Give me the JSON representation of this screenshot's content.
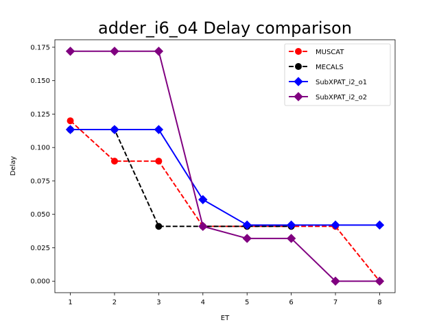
{
  "chart_data": {
    "type": "line",
    "title": "adder_i6_o4 Delay comparison",
    "xlabel": "ET",
    "ylabel": "Delay",
    "x": [
      1,
      2,
      3,
      4,
      5,
      6,
      7,
      8
    ],
    "xlim": [
      0.65,
      8.35
    ],
    "ylim": [
      -0.0086,
      0.1806
    ],
    "xticks": [
      1,
      2,
      3,
      4,
      5,
      6,
      7,
      8
    ],
    "xtick_labels": [
      "1",
      "2",
      "3",
      "4",
      "5",
      "6",
      "7",
      "8"
    ],
    "yticks": [
      0.0,
      0.025,
      0.05,
      0.075,
      0.1,
      0.125,
      0.15,
      0.175
    ],
    "ytick_labels": [
      "0.000",
      "0.025",
      "0.050",
      "0.075",
      "0.100",
      "0.125",
      "0.150",
      "0.175"
    ],
    "grid": false,
    "legend_position": "top-right",
    "series": [
      {
        "name": "MUSCAT",
        "color": "#ff0000",
        "dash": "dashed",
        "marker": "circle",
        "values": [
          0.12,
          0.0898,
          0.0898,
          0.041,
          0.041,
          0.041,
          0.041,
          0.0
        ]
      },
      {
        "name": "MECALS",
        "color": "#000000",
        "dash": "dashed",
        "marker": "circle",
        "values": [
          0.1134,
          0.1134,
          0.041,
          0.041,
          0.041,
          0.041,
          null,
          null
        ]
      },
      {
        "name": "SubXPAT_i2_o1",
        "color": "#0000ff",
        "dash": "solid",
        "marker": "diamond",
        "values": [
          0.1134,
          0.1134,
          0.1134,
          0.061,
          0.042,
          0.042,
          0.042,
          0.042
        ]
      },
      {
        "name": "SubXPAT_i2_o2",
        "color": "#800080",
        "dash": "solid",
        "marker": "diamond",
        "values": [
          0.172,
          0.172,
          0.172,
          0.041,
          0.032,
          0.032,
          0.0,
          0.0
        ]
      }
    ]
  }
}
